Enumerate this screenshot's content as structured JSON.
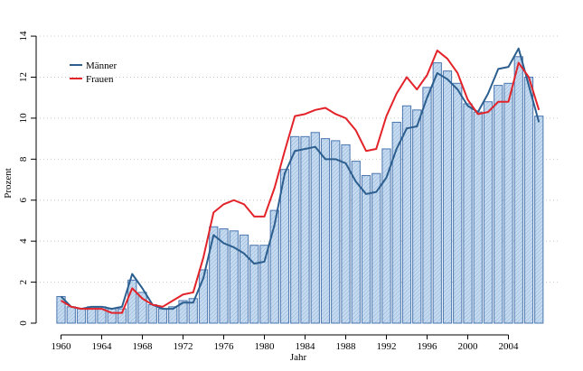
{
  "chart_data": {
    "type": "bar",
    "xlabel": "Jahr",
    "ylabel": "Prozent",
    "ylim": [
      0,
      14
    ],
    "yticks": [
      0,
      2,
      4,
      6,
      8,
      10,
      12,
      14
    ],
    "xticks": [
      1960,
      1964,
      1968,
      1972,
      1976,
      1980,
      1984,
      1988,
      1992,
      1996,
      2000,
      2004
    ],
    "grid": "horizontal dotted",
    "legend_position": "top-left",
    "x": [
      1960,
      1961,
      1962,
      1963,
      1964,
      1965,
      1966,
      1967,
      1968,
      1969,
      1970,
      1971,
      1972,
      1973,
      1974,
      1975,
      1976,
      1977,
      1978,
      1979,
      1980,
      1981,
      1982,
      1983,
      1984,
      1985,
      1986,
      1987,
      1988,
      1989,
      1990,
      1991,
      1992,
      1993,
      1994,
      1995,
      1996,
      1997,
      1998,
      1999,
      2000,
      2001,
      2002,
      2003,
      2004,
      2005,
      2006,
      2007
    ],
    "bar_values": [
      1.3,
      0.8,
      0.7,
      0.8,
      0.8,
      0.7,
      0.7,
      2.1,
      1.5,
      0.9,
      0.7,
      0.8,
      1.1,
      1.2,
      2.6,
      4.7,
      4.6,
      4.5,
      4.3,
      3.8,
      3.8,
      5.5,
      7.5,
      9.1,
      9.1,
      9.3,
      9.0,
      8.9,
      8.7,
      7.9,
      7.2,
      7.3,
      8.5,
      9.8,
      10.6,
      10.4,
      11.5,
      12.7,
      12.3,
      11.7,
      10.7,
      10.3,
      10.8,
      11.6,
      11.7,
      13.0,
      12.0,
      10.1
    ],
    "bar_style": {
      "fill": "#c6dbef",
      "stroke": "#4a76b0"
    },
    "series": [
      {
        "name": "Männer",
        "color": "#2c5f8f",
        "values": [
          1.3,
          0.8,
          0.7,
          0.8,
          0.8,
          0.7,
          0.8,
          2.4,
          1.7,
          0.9,
          0.7,
          0.7,
          1.0,
          1.0,
          2.2,
          4.3,
          3.9,
          3.7,
          3.4,
          2.9,
          3.0,
          4.8,
          7.3,
          8.4,
          8.5,
          8.6,
          8.0,
          8.0,
          7.8,
          6.9,
          6.3,
          6.4,
          7.1,
          8.5,
          9.5,
          9.6,
          11.0,
          12.2,
          11.9,
          11.4,
          10.6,
          10.3,
          11.2,
          12.4,
          12.5,
          13.4,
          11.6,
          9.8
        ]
      },
      {
        "name": "Frauen",
        "color": "#e3232a",
        "values": [
          1.1,
          0.8,
          0.7,
          0.7,
          0.7,
          0.5,
          0.5,
          1.7,
          1.2,
          0.9,
          0.8,
          1.1,
          1.4,
          1.5,
          3.2,
          5.4,
          5.8,
          6.0,
          5.8,
          5.2,
          5.2,
          6.6,
          8.4,
          10.1,
          10.2,
          10.4,
          10.5,
          10.2,
          10.0,
          9.4,
          8.4,
          8.5,
          10.1,
          11.2,
          12.0,
          11.4,
          12.1,
          13.3,
          12.9,
          12.2,
          10.9,
          10.2,
          10.3,
          10.8,
          10.8,
          12.7,
          12.0,
          10.4
        ]
      }
    ]
  }
}
